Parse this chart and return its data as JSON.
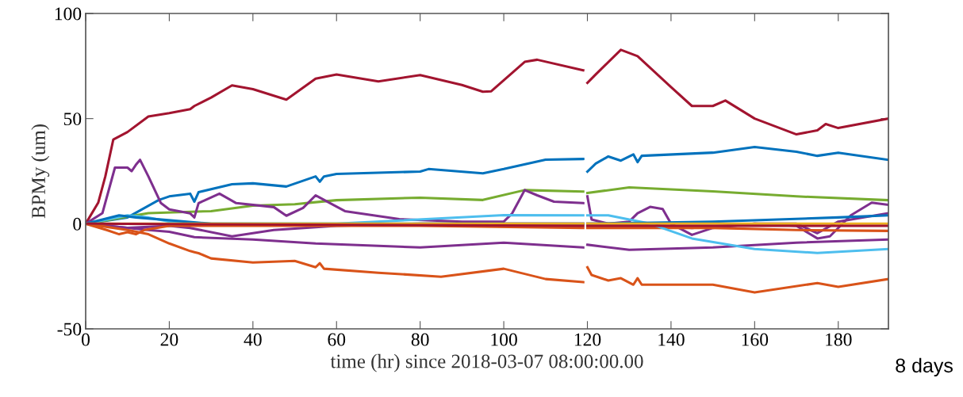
{
  "chart_data": {
    "type": "line",
    "xlabel": "time (hr) since 2018-03-07 08:00:00.00",
    "ylabel": "BPMy (um)",
    "xlim": [
      0,
      192
    ],
    "ylim": [
      -50,
      100
    ],
    "xticks": [
      0,
      20,
      40,
      60,
      80,
      100,
      120,
      140,
      160,
      180
    ],
    "yticks": [
      -50,
      0,
      50,
      100
    ],
    "grid": false,
    "marker": "none",
    "line_style": "solid",
    "annotations": [
      "8 days"
    ],
    "series": [
      {
        "color": "#a2142f",
        "x": [
          0,
          3,
          4.7,
          6.6,
          10,
          15,
          20,
          25,
          26,
          30,
          35,
          40,
          48,
          55,
          60,
          70,
          80,
          90,
          95,
          97,
          105,
          108,
          119,
          119.5,
          120,
          122,
          128,
          132,
          140,
          145,
          150,
          153,
          160,
          170,
          175,
          177,
          180,
          192
        ],
        "values": [
          0,
          10,
          22.5,
          40,
          43.6,
          51,
          52.6,
          54.5,
          56,
          60,
          65.8,
          64,
          59,
          69,
          71,
          67.7,
          70.7,
          66,
          62.8,
          63,
          77,
          78,
          73,
          null,
          67,
          71,
          82.7,
          79.7,
          65,
          56,
          56,
          58.6,
          50,
          42.5,
          44.4,
          47.4,
          45.5,
          50
        ]
      },
      {
        "color": "#0072bd",
        "x": [
          0,
          10,
          17.5,
          20,
          25,
          26,
          27,
          35,
          40,
          48,
          55,
          56,
          57,
          60,
          80,
          82,
          95,
          100,
          110,
          119,
          119.5,
          120,
          122,
          125,
          128,
          131,
          132,
          133,
          150,
          160,
          170,
          175,
          180,
          192
        ],
        "values": [
          0,
          3,
          11.3,
          13,
          14.3,
          10.5,
          15,
          18.8,
          19.2,
          17.7,
          22.5,
          20,
          22.5,
          23.7,
          24.8,
          26,
          24,
          26,
          30.5,
          30.8,
          null,
          24.8,
          28.6,
          32,
          30,
          33,
          29.3,
          32.3,
          33.8,
          36.5,
          34.2,
          32.3,
          33.8,
          30.4
        ]
      },
      {
        "color": "#77ac30",
        "x": [
          0,
          15,
          30,
          40,
          50,
          60,
          80,
          95,
          105,
          119,
          119.5,
          120,
          130,
          150,
          170,
          192
        ],
        "values": [
          0,
          5,
          6,
          8.6,
          9.3,
          11.2,
          12.4,
          11.3,
          16,
          15.3,
          null,
          14.6,
          17.3,
          15.4,
          13,
          11.2
        ]
      },
      {
        "color": "#7e2f8e",
        "x": [
          0,
          4,
          7,
          10,
          11,
          12,
          13,
          15,
          18,
          20,
          25,
          26,
          27,
          32,
          36,
          45,
          48,
          52,
          55,
          56,
          62,
          75,
          90,
          100,
          102,
          105,
          108,
          112,
          119,
          119.5,
          120,
          121,
          125,
          130,
          132,
          135,
          138,
          140,
          145,
          150,
          160,
          170,
          175,
          180,
          192
        ],
        "values": [
          0,
          5,
          26.7,
          26.7,
          25,
          28,
          30.4,
          22.5,
          9.8,
          6.8,
          4.9,
          3,
          9.8,
          14.3,
          9.8,
          7.9,
          3.8,
          7.5,
          13.5,
          12.4,
          6,
          2.2,
          1,
          1,
          4.9,
          16,
          13.5,
          10.5,
          9.8,
          null,
          13,
          2,
          0,
          1,
          5,
          8,
          7,
          0,
          -5.3,
          -2,
          0,
          0,
          -4.5,
          1,
          5
        ]
      },
      {
        "color": "#7e2f8e",
        "x": [
          0,
          10,
          20,
          25,
          35,
          45,
          60,
          80,
          100,
          119,
          119.5,
          120,
          130,
          145,
          160,
          170,
          175,
          178,
          183,
          188,
          192
        ],
        "values": [
          0,
          -2,
          -1,
          -2,
          -6,
          -3,
          -1,
          0,
          0,
          0,
          null,
          0,
          0,
          -2,
          0,
          -1,
          -7,
          -6,
          4,
          10,
          9
        ]
      },
      {
        "color": "#7e2f8e",
        "x": [
          0,
          15,
          20,
          26,
          40,
          55,
          80,
          100,
          119,
          119.5,
          120,
          130,
          150,
          170,
          192
        ],
        "values": [
          0,
          -3,
          -3.8,
          -6.4,
          -7.5,
          -9.4,
          -11.3,
          -9,
          -11.3,
          null,
          -10,
          -12.4,
          -11.3,
          -9,
          -7.5
        ]
      },
      {
        "color": "#d95319",
        "x": [
          0,
          10,
          15,
          20,
          25,
          26,
          27,
          30,
          40,
          50,
          55,
          56,
          57,
          70,
          85,
          100,
          110,
          119,
          119.5,
          120,
          121,
          125,
          128,
          131,
          132,
          133,
          150,
          160,
          175,
          180,
          192
        ],
        "values": [
          0,
          -3,
          -5,
          -9.4,
          -13,
          -13.5,
          -14,
          -16.5,
          -18.4,
          -17.7,
          -20.7,
          -18.8,
          -21.4,
          -23.3,
          -25.2,
          -21.4,
          -26.3,
          -27.8,
          null,
          -20.7,
          -24.4,
          -27,
          -25.9,
          -29,
          -25.9,
          -29,
          -29,
          -32.7,
          -28.2,
          -30,
          -26.3
        ]
      },
      {
        "color": "#d95319",
        "x": [
          0,
          5,
          8,
          10,
          12,
          14,
          20,
          40,
          80,
          119,
          119.5,
          120,
          150,
          170,
          192
        ],
        "values": [
          0,
          -3,
          -5,
          -4,
          -5,
          -3,
          -1,
          -1,
          -1,
          -2,
          null,
          -2,
          -2,
          -3,
          -3.4
        ]
      },
      {
        "color": "#4dbeee",
        "x": [
          0,
          10,
          15,
          20,
          30,
          60,
          100,
          119,
          119.5,
          120,
          125,
          135,
          145,
          160,
          175,
          192
        ],
        "values": [
          0,
          4,
          3,
          1,
          0,
          0,
          4.1,
          4,
          null,
          4,
          4,
          0,
          -7,
          -12,
          -13.9,
          -12
        ]
      },
      {
        "color": "#0072bd",
        "x": [
          0,
          8,
          12,
          30,
          80,
          119,
          119.5,
          120,
          150,
          180,
          192
        ],
        "values": [
          0,
          4,
          3,
          0,
          0,
          0,
          null,
          0,
          1,
          3,
          4
        ]
      },
      {
        "color": "#edb120",
        "x": [
          0,
          119,
          119.5,
          120,
          192
        ],
        "values": [
          0,
          0,
          null,
          0,
          0
        ]
      },
      {
        "color": "#a2142f",
        "x": [
          0,
          119,
          119.5,
          120,
          192
        ],
        "values": [
          0,
          -1,
          null,
          -1,
          -1
        ]
      }
    ]
  }
}
